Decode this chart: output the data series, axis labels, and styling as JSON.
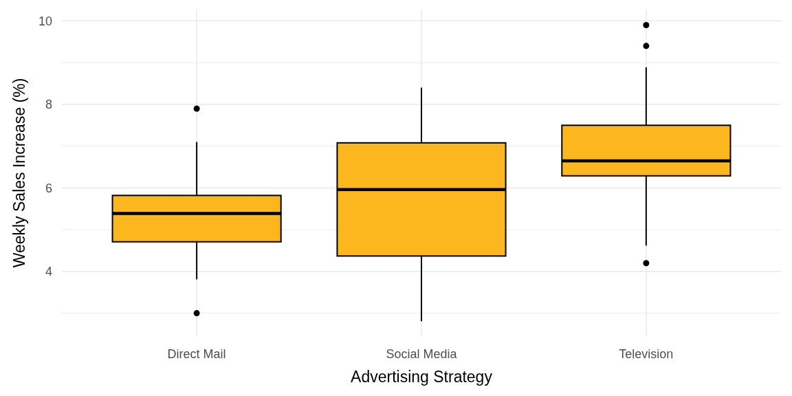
{
  "chart_data": {
    "type": "box",
    "xlabel": "Advertising Strategy",
    "ylabel": "Weekly Sales Increase (%)",
    "categories": [
      "Direct Mail",
      "Social Media",
      "Television"
    ],
    "color": "#fdb71e",
    "boxes": [
      {
        "low": 3.81,
        "q1": 4.71,
        "median": 5.39,
        "q3": 5.82,
        "high": 7.1,
        "outliers": [
          7.9,
          3.0
        ]
      },
      {
        "low": 2.81,
        "q1": 4.37,
        "median": 5.96,
        "q3": 7.08,
        "high": 8.4
      },
      {
        "low": 4.62,
        "q1": 6.29,
        "median": 6.65,
        "q3": 7.5,
        "high": 8.89,
        "outliers": [
          9.9,
          9.4,
          4.2
        ]
      }
    ],
    "ylim": [
      2.45,
      10.27
    ],
    "yticks": [
      {
        "value": 3,
        "label": null
      },
      4,
      {
        "value": 5,
        "label": null
      },
      6,
      {
        "value": 7,
        "label": null
      },
      8,
      {
        "value": 9,
        "label": null
      },
      10
    ],
    "grid": true
  }
}
